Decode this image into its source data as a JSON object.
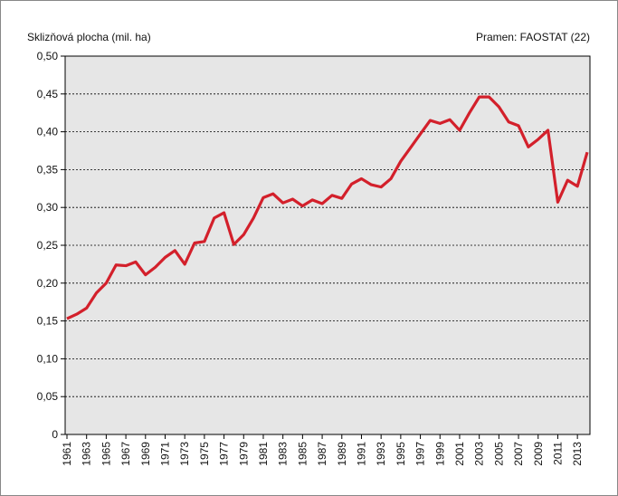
{
  "chart_data": {
    "type": "line",
    "y_label": "Sklizňová plocha (mil. ha)",
    "source": "Pramen: FAOSTAT (22)",
    "x": [
      1961,
      1962,
      1963,
      1964,
      1965,
      1966,
      1967,
      1968,
      1969,
      1970,
      1971,
      1972,
      1973,
      1974,
      1975,
      1976,
      1977,
      1978,
      1979,
      1980,
      1981,
      1982,
      1983,
      1984,
      1985,
      1986,
      1987,
      1988,
      1989,
      1990,
      1991,
      1992,
      1993,
      1994,
      1995,
      1996,
      1997,
      1998,
      1999,
      2000,
      2001,
      2002,
      2003,
      2004,
      2005,
      2006,
      2007,
      2008,
      2009,
      2010,
      2011,
      2012,
      2013,
      2014
    ],
    "series": [
      {
        "name": "Sklizňová plocha",
        "color": "#d3202b",
        "values": [
          0.153,
          0.159,
          0.167,
          0.187,
          0.2,
          0.224,
          0.223,
          0.228,
          0.211,
          0.221,
          0.234,
          0.243,
          0.225,
          0.253,
          0.255,
          0.286,
          0.293,
          0.251,
          0.264,
          0.286,
          0.313,
          0.318,
          0.306,
          0.311,
          0.302,
          0.31,
          0.305,
          0.316,
          0.312,
          0.331,
          0.338,
          0.33,
          0.327,
          0.338,
          0.361,
          0.379,
          0.397,
          0.415,
          0.411,
          0.416,
          0.402,
          0.425,
          0.446,
          0.446,
          0.433,
          0.413,
          0.408,
          0.38,
          0.39,
          0.402,
          0.307,
          0.336,
          0.328,
          0.373
        ]
      }
    ],
    "xlim": [
      1961,
      2014
    ],
    "xticks": [
      1961,
      1963,
      1965,
      1967,
      1969,
      1971,
      1973,
      1975,
      1977,
      1979,
      1981,
      1983,
      1985,
      1987,
      1989,
      1991,
      1993,
      1995,
      1997,
      1999,
      2001,
      2003,
      2005,
      2007,
      2009,
      2011,
      2013
    ],
    "ylim": [
      0,
      0.5
    ],
    "yticks": [
      0,
      {
        "value": 0.05,
        "label": "0,05"
      },
      {
        "value": 0.1,
        "label": "0,10"
      },
      {
        "value": 0.15,
        "label": "0,15"
      },
      {
        "value": 0.2,
        "label": "0,20"
      },
      {
        "value": 0.25,
        "label": "0,25"
      },
      {
        "value": 0.3,
        "label": "0,30"
      },
      {
        "value": 0.35,
        "label": "0,35"
      },
      {
        "value": 0.4,
        "label": "0,40"
      },
      {
        "value": 0.45,
        "label": "0,45"
      },
      {
        "value": 0.5,
        "label": "0,50"
      }
    ],
    "grid": true
  }
}
